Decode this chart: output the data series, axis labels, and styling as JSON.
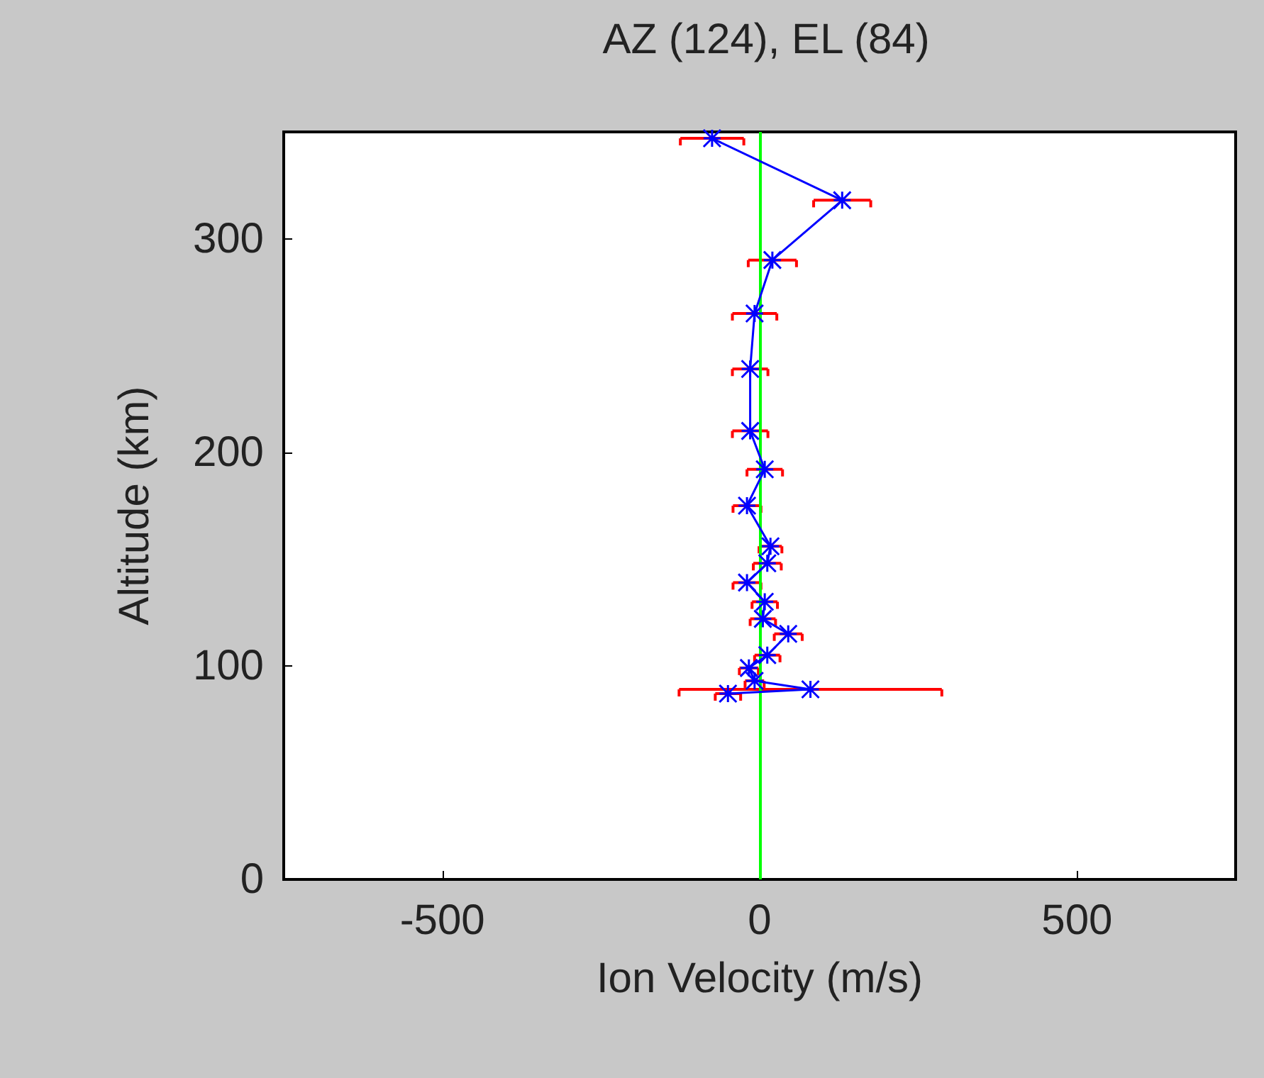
{
  "chart_data": {
    "type": "line",
    "title": "AZ (124), EL (84)",
    "xlabel": "Ion Velocity (m/s)",
    "ylabel": "Altitude (km)",
    "xlim": [
      -750,
      750
    ],
    "xticks": [
      -500,
      0,
      500
    ],
    "ylim": [
      0,
      350
    ],
    "yticks": [
      0,
      100,
      200,
      300
    ],
    "grid": false,
    "marker": "cross",
    "line_style": "solid",
    "series": [
      {
        "color": "#0000ff",
        "x": [
          -75,
          130,
          20,
          -8,
          -15,
          -15,
          8,
          -20,
          17,
          12,
          -20,
          8,
          5,
          45,
          12,
          -17,
          -8,
          80,
          -50
        ],
        "values": [
          347,
          318,
          290,
          265,
          239,
          210,
          192,
          175,
          156,
          148,
          139,
          130,
          122,
          115,
          105,
          99,
          93,
          89,
          87
        ],
        "xerrors": [
          50,
          45,
          38,
          35,
          28,
          28,
          28,
          22,
          18,
          22,
          22,
          20,
          20,
          22,
          20,
          15,
          15,
          207,
          20
        ]
      }
    ],
    "ref_lines": [
      {
        "axis": "x",
        "value": 0,
        "color": "#00ff00",
        "line_style": "solid"
      }
    ]
  }
}
